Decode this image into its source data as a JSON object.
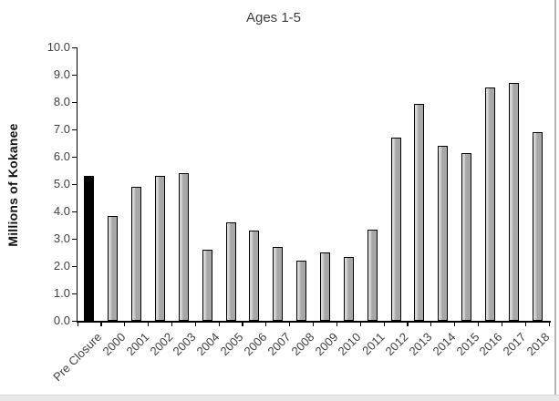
{
  "window": {
    "right_border_color": "#b3b3b3",
    "bottom_edge_color": "#e9e9e9",
    "background": "#ffffff"
  },
  "chart_data": {
    "type": "bar",
    "title": "Ages 1-5",
    "xlabel": "",
    "ylabel": "Millions of Kokanee",
    "ylim": [
      0,
      10
    ],
    "ytick_step": 1.0,
    "ytick_labels": [
      "0.0",
      "1.0",
      "2.0",
      "3.0",
      "4.0",
      "5.0",
      "6.0",
      "7.0",
      "8.0",
      "9.0",
      "10.0"
    ],
    "grid": false,
    "legend": null,
    "categories": [
      "Pre Closure",
      "2000",
      "2001",
      "2002",
      "2003",
      "2004",
      "2005",
      "2006",
      "2007",
      "2008",
      "2009",
      "2010",
      "2011",
      "2012",
      "2013",
      "2014",
      "2015",
      "2016",
      "2017",
      "2018"
    ],
    "values": [
      5.3,
      3.85,
      4.9,
      5.3,
      5.4,
      2.6,
      3.6,
      3.3,
      2.7,
      2.2,
      2.5,
      2.35,
      3.35,
      6.7,
      7.95,
      6.4,
      6.15,
      8.55,
      8.7,
      6.9
    ],
    "bar_color_first": "#000000",
    "bar_color_rest": "#a7a7a7",
    "bar_border_color": "#000000",
    "axis_color": "#000000",
    "text_color": "#3f3f3f"
  }
}
